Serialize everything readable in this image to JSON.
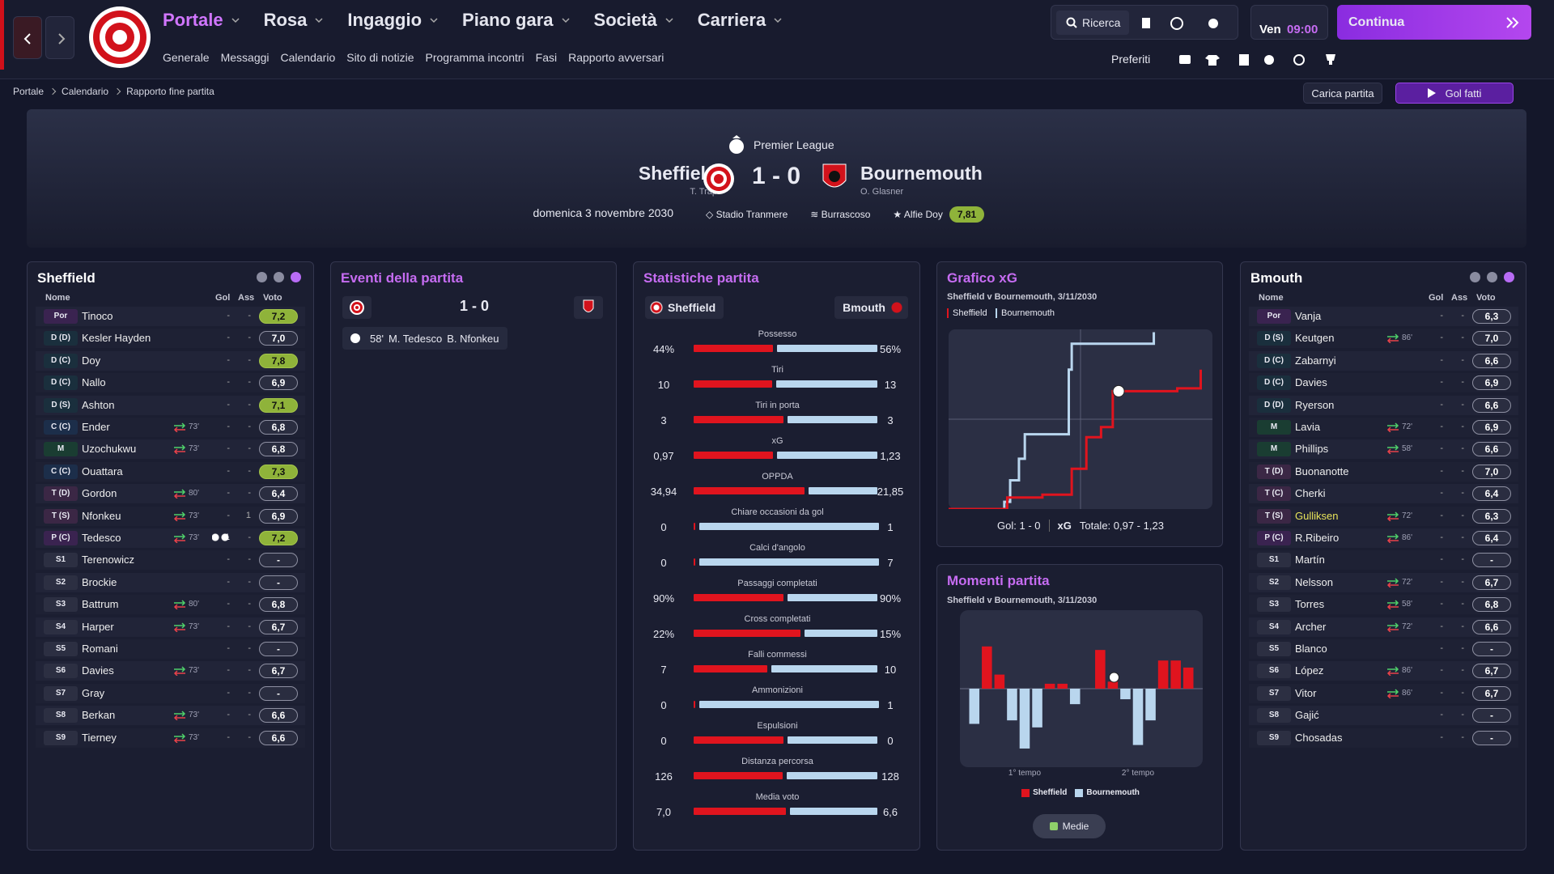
{
  "nav": {
    "tabs": [
      "Portale",
      "Rosa",
      "Ingaggio",
      "Piano gara",
      "Società",
      "Carriera"
    ],
    "subtabs": [
      "Generale",
      "Messaggi",
      "Calendario",
      "Sito di notizie",
      "Programma incontri",
      "Fasi",
      "Rapporto avversari"
    ],
    "search": "Ricerca",
    "day": "Ven",
    "time": "09:00",
    "continue": "Continua",
    "favorites": "Preferiti"
  },
  "breadcrumb": [
    "Portale",
    "Calendario",
    "Rapporto fine partita"
  ],
  "actions": {
    "load": "Carica partita",
    "goals": "Gol fatti"
  },
  "match": {
    "competition": "Premier League",
    "home": "Sheffield",
    "home_manager": "T. Trap",
    "score": "1 - 0",
    "away": "Bournemouth",
    "away_manager": "O. Glasner",
    "date": "domenica 3 novembre 2030",
    "stadium": "Stadio Tranmere",
    "weather": "Burrascoso",
    "motm": "Alfie Doy",
    "motm_rating": "7,81"
  },
  "home_panel": {
    "title": "Sheffield",
    "columns": [
      "Nome",
      "Gol",
      "Ass",
      "Voto"
    ],
    "highlight": [
      0,
      2,
      4,
      7,
      10
    ],
    "rows": [
      [
        "Por",
        "Tinoco",
        null,
        "-",
        "-",
        "7,2"
      ],
      [
        "D (D)",
        "Kesler Hayden",
        null,
        "-",
        "-",
        "7,0"
      ],
      [
        "D (C)",
        "Doy",
        null,
        "-",
        "-",
        "7,8"
      ],
      [
        "D (C)",
        "Nallo",
        null,
        "-",
        "-",
        "6,9"
      ],
      [
        "D (S)",
        "Ashton",
        null,
        "-",
        "-",
        "7,1"
      ],
      [
        "C (C)",
        "Ender",
        "73'",
        "-",
        "-",
        "6,8"
      ],
      [
        "M",
        "Uzochukwu",
        "73'",
        "-",
        "-",
        "6,8"
      ],
      [
        "C (C)",
        "Ouattara",
        null,
        "-",
        "-",
        "7,3"
      ],
      [
        "T (D)",
        "Gordon",
        "80'",
        "-",
        "-",
        "6,4"
      ],
      [
        "T (S)",
        "Nfonkeu",
        "73'",
        "-",
        "1",
        "6,9"
      ],
      [
        "P (C)",
        "Tedesco",
        "73'",
        "1",
        "-",
        "7,2"
      ],
      [
        "S1",
        "Terenowicz",
        null,
        "-",
        "-",
        "-"
      ],
      [
        "S2",
        "Brockie",
        null,
        "-",
        "-",
        "-"
      ],
      [
        "S3",
        "Battrum",
        "80'",
        "-",
        "-",
        "6,8"
      ],
      [
        "S4",
        "Harper",
        "73'",
        "-",
        "-",
        "6,7"
      ],
      [
        "S5",
        "Romani",
        null,
        "-",
        "-",
        "-"
      ],
      [
        "S6",
        "Davies",
        "73'",
        "-",
        "-",
        "6,7"
      ],
      [
        "S7",
        "Gray",
        null,
        "-",
        "-",
        "-"
      ],
      [
        "S8",
        "Berkan",
        "73'",
        "-",
        "-",
        "6,6"
      ],
      [
        "S9",
        "Tierney",
        "73'",
        "-",
        "-",
        "6,6"
      ]
    ]
  },
  "events": {
    "title": "Eventi della partita",
    "score": "1 - 0",
    "items": [
      {
        "minute": "58'",
        "scorer": "M. Tedesco",
        "assist": "B. Nfonkeu"
      }
    ]
  },
  "stats": {
    "title": "Statistiche partita",
    "home": "Sheffield",
    "away": "Bmouth",
    "rows": [
      {
        "label": "Possesso",
        "home": {
          "value": 44,
          "label": "44%"
        },
        "away": {
          "value": 56,
          "label": "56%"
        }
      },
      {
        "label": "Tiri",
        "home": 10,
        "away": 13
      },
      {
        "label": "Tiri in porta",
        "home": 3,
        "away": 3
      },
      {
        "label": "xG",
        "home": {
          "value": 0.97,
          "label": "0,97"
        },
        "away": {
          "value": 1.23,
          "label": "1,23"
        }
      },
      {
        "label": "OPPDA",
        "home": {
          "value": 34.94,
          "label": "34,94"
        },
        "away": {
          "value": 21.85,
          "label": "21,85"
        }
      },
      {
        "label": "Chiare occasioni da gol",
        "home": 0,
        "away": 1
      },
      {
        "label": "Calci d'angolo",
        "home": 0,
        "away": 7
      },
      {
        "label": "Passaggi completati",
        "home": {
          "value": 90,
          "label": "90%"
        },
        "away": {
          "value": 90,
          "label": "90%"
        }
      },
      {
        "label": "Cross completati",
        "home": {
          "value": 22,
          "label": "22%"
        },
        "away": {
          "value": 15,
          "label": "15%"
        }
      },
      {
        "label": "Falli commessi",
        "home": 7,
        "away": 10
      },
      {
        "label": "Ammonizioni",
        "home": 0,
        "away": 1
      },
      {
        "label": "Espulsioni",
        "home": 0,
        "away": 0
      },
      {
        "label": "Distanza percorsa",
        "home": 126,
        "away": 128
      },
      {
        "label": "Media voto",
        "home": {
          "value": 7.0,
          "label": "7,0"
        },
        "away": {
          "value": 6.6,
          "label": "6,6"
        }
      }
    ]
  },
  "xg": {
    "type": "line",
    "title": "Grafico xG",
    "subtitle": "Sheffield v Bournemouth, 3/11/2030",
    "xlim": [
      0,
      90
    ],
    "ylim": [
      0,
      1.25
    ],
    "series": [
      {
        "name": "Sheffield",
        "color": "#e0141e",
        "x": [
          0,
          20,
          32,
          42,
          47,
          52,
          56,
          78,
          86
        ],
        "values": [
          0,
          0.08,
          0.1,
          0.28,
          0.5,
          0.57,
          0.82,
          0.84,
          0.97
        ]
      },
      {
        "name": "Bournemouth",
        "color": "#b9d6ee",
        "x": [
          0,
          19,
          21,
          24,
          26,
          41,
          42,
          70
        ],
        "values": [
          0,
          0.05,
          0.2,
          0.35,
          0.52,
          0.97,
          1.15,
          1.23
        ]
      }
    ],
    "goal_minute": 58,
    "goal_value": 0.82,
    "goals": "Gol: 1 - 0",
    "xg_label": "xG",
    "total": "Totale: 0,97 - 1,23"
  },
  "momentum": {
    "type": "bar",
    "title": "Momenti partita",
    "subtitle": "Sheffield v Bournemouth, 3/11/2030",
    "xlim": [
      0,
      90
    ],
    "ylim": [
      -1,
      1
    ],
    "halves": [
      "1° tempo",
      "2° tempo"
    ],
    "series": [
      {
        "name": "Sheffield",
        "color": "#e0141e",
        "values": [
          0,
          0.6,
          0.2,
          0,
          0,
          0,
          0.07,
          0.07,
          0,
          0,
          0.55,
          0.1,
          0,
          0,
          0,
          0.4,
          0.4,
          0.3
        ]
      },
      {
        "name": "Bournemouth",
        "color": "#b9d6ee",
        "values": [
          -0.5,
          0,
          0,
          -0.45,
          -0.85,
          -0.55,
          0,
          0,
          -0.22,
          0,
          0,
          0,
          -0.15,
          -0.8,
          -0.45,
          0,
          0,
          0
        ]
      }
    ],
    "button": "Medie"
  },
  "away_panel": {
    "title": "Bmouth",
    "columns": [
      "Nome",
      "Gol",
      "Ass",
      "Voto"
    ],
    "highlight": [],
    "name_highlight": [
      9
    ],
    "rows": [
      [
        "Por",
        "Vanja",
        null,
        "-",
        "-",
        "6,3"
      ],
      [
        "D (S)",
        "Keutgen",
        "86'",
        "-",
        "-",
        "7,0"
      ],
      [
        "D (C)",
        "Zabarnyi",
        null,
        "-",
        "-",
        "6,6"
      ],
      [
        "D (C)",
        "Davies",
        null,
        "-",
        "-",
        "6,9"
      ],
      [
        "D (D)",
        "Ryerson",
        null,
        "-",
        "-",
        "6,6"
      ],
      [
        "M",
        "Lavia",
        "72'",
        "-",
        "-",
        "6,9"
      ],
      [
        "M",
        "Phillips",
        "58'",
        "-",
        "-",
        "6,6"
      ],
      [
        "T (D)",
        "Buonanotte",
        null,
        "-",
        "-",
        "7,0"
      ],
      [
        "T (C)",
        "Cherki",
        null,
        "-",
        "-",
        "6,4"
      ],
      [
        "T (S)",
        "Gulliksen",
        "72'",
        "-",
        "-",
        "6,3"
      ],
      [
        "P (C)",
        "R.Ribeiro",
        "86'",
        "-",
        "-",
        "6,4"
      ],
      [
        "S1",
        "Martín",
        null,
        "-",
        "-",
        "-"
      ],
      [
        "S2",
        "Nelsson",
        "72'",
        "-",
        "-",
        "6,7"
      ],
      [
        "S3",
        "Torres",
        "58'",
        "-",
        "-",
        "6,8"
      ],
      [
        "S4",
        "Archer",
        "72'",
        "-",
        "-",
        "6,6"
      ],
      [
        "S5",
        "Blanco",
        null,
        "-",
        "-",
        "-"
      ],
      [
        "S6",
        "López",
        "86'",
        "-",
        "-",
        "6,7"
      ],
      [
        "S7",
        "Vitor",
        "86'",
        "-",
        "-",
        "6,7"
      ],
      [
        "S8",
        "Gajić",
        null,
        "-",
        "-",
        "-"
      ],
      [
        "S9",
        "Chosadas",
        null,
        "-",
        "-",
        "-"
      ]
    ]
  }
}
